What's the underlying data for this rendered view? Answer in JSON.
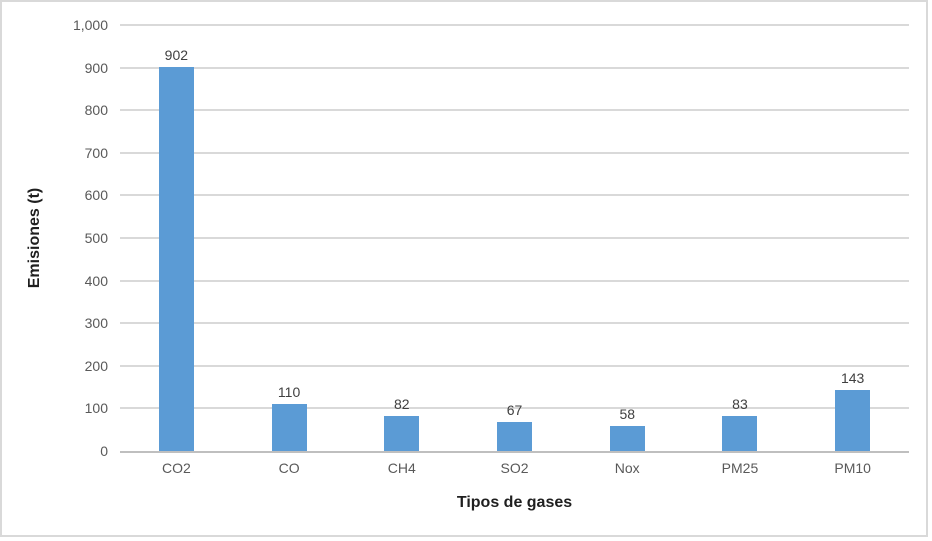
{
  "chart_data": {
    "type": "bar",
    "categories": [
      "CO2",
      "CO",
      "CH4",
      "SO2",
      "Nox",
      "PM25",
      "PM10"
    ],
    "values": [
      902,
      110,
      82,
      67,
      58,
      83,
      143
    ],
    "value_labels": [
      "902",
      "110",
      "82",
      "67",
      "58",
      "83",
      "143"
    ],
    "title": "",
    "xlabel": "Tipos de gases",
    "ylabel": "Emisiones (t)",
    "ylim": [
      0,
      1000
    ],
    "ytick_step": 100,
    "ytick_labels": [
      "0",
      "100",
      "200",
      "300",
      "400",
      "500",
      "600",
      "700",
      "800",
      "900",
      "1,000"
    ],
    "grid": true,
    "legend": false,
    "bar_color": "#5B9BD5"
  },
  "colors": {
    "bar": "#5B9BD5",
    "gridline": "#D9D9D9",
    "axis_line": "#BFBFBF",
    "tick_text": "#595959",
    "data_label_text": "#404040",
    "axis_title_text": "#1f1f1f",
    "chart_border": "#D9D9D9",
    "background": "#FFFFFF"
  }
}
